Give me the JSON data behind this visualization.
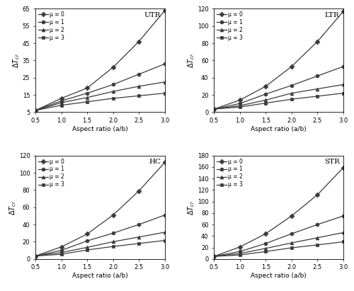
{
  "x": [
    0.5,
    1.0,
    1.5,
    2.0,
    2.5,
    3.0
  ],
  "subplots": [
    {
      "title": "UTR",
      "ylim": [
        5,
        65
      ],
      "yticks": [
        5,
        15,
        25,
        35,
        45,
        55,
        65
      ],
      "series": [
        {
          "mu": 0,
          "values": [
            6.0,
            13.0,
            19.0,
            31.0,
            46.0,
            64.0
          ],
          "marker": "D"
        },
        {
          "mu": 1,
          "values": [
            6.0,
            11.5,
            16.0,
            21.0,
            27.0,
            33.0
          ],
          "marker": "o"
        },
        {
          "mu": 2,
          "values": [
            6.0,
            10.5,
            13.5,
            17.0,
            20.0,
            22.5
          ],
          "marker": "^"
        },
        {
          "mu": 3,
          "values": [
            6.0,
            9.0,
            11.0,
            13.0,
            14.5,
            16.0
          ],
          "marker": "s"
        }
      ]
    },
    {
      "title": "LTR",
      "ylim": [
        0,
        120
      ],
      "yticks": [
        0,
        20,
        40,
        60,
        80,
        100,
        120
      ],
      "series": [
        {
          "mu": 0,
          "values": [
            3.5,
            14.0,
            30.0,
            53.0,
            82.0,
            117.0
          ],
          "marker": "D"
        },
        {
          "mu": 1,
          "values": [
            3.5,
            10.0,
            21.0,
            31.0,
            42.0,
            53.0
          ],
          "marker": "o"
        },
        {
          "mu": 2,
          "values": [
            3.5,
            7.5,
            14.0,
            22.0,
            27.0,
            32.0
          ],
          "marker": "^"
        },
        {
          "mu": 3,
          "values": [
            3.5,
            6.0,
            10.5,
            15.0,
            18.5,
            22.0
          ],
          "marker": "s"
        }
      ]
    },
    {
      "title": "HC",
      "ylim": [
        0,
        120
      ],
      "yticks": [
        0,
        20,
        40,
        60,
        80,
        100,
        120
      ],
      "series": [
        {
          "mu": 0,
          "values": [
            3.5,
            14.0,
            29.0,
            51.0,
            79.0,
            112.0
          ],
          "marker": "D"
        },
        {
          "mu": 1,
          "values": [
            3.5,
            10.0,
            21.0,
            30.0,
            40.0,
            51.0
          ],
          "marker": "o"
        },
        {
          "mu": 2,
          "values": [
            3.5,
            7.5,
            13.5,
            20.0,
            25.5,
            31.0
          ],
          "marker": "^"
        },
        {
          "mu": 3,
          "values": [
            3.5,
            5.5,
            10.5,
            14.5,
            18.0,
            21.5
          ],
          "marker": "s"
        }
      ]
    },
    {
      "title": "STR",
      "ylim": [
        0,
        180
      ],
      "yticks": [
        0,
        20,
        40,
        60,
        80,
        100,
        120,
        140,
        160,
        180
      ],
      "series": [
        {
          "mu": 0,
          "values": [
            4.5,
            21.0,
            44.0,
            75.0,
            112.0,
            159.0
          ],
          "marker": "D"
        },
        {
          "mu": 1,
          "values": [
            4.5,
            13.0,
            27.0,
            44.0,
            60.0,
            75.0
          ],
          "marker": "o"
        },
        {
          "mu": 2,
          "values": [
            4.5,
            9.5,
            18.5,
            28.0,
            37.0,
            46.0
          ],
          "marker": "^"
        },
        {
          "mu": 3,
          "values": [
            4.5,
            7.0,
            13.0,
            19.5,
            24.5,
            30.0
          ],
          "marker": "s"
        }
      ]
    }
  ],
  "xlabel": "Aspect ratio (a/b)",
  "line_color": "#3a3a3a",
  "legend_labels": [
    "μ = 0",
    "μ = 1",
    "μ = 2",
    "μ = 3"
  ],
  "xticks": [
    0.5,
    1.0,
    1.5,
    2.0,
    2.5,
    3.0
  ],
  "xlim": [
    0.5,
    3.0
  ]
}
